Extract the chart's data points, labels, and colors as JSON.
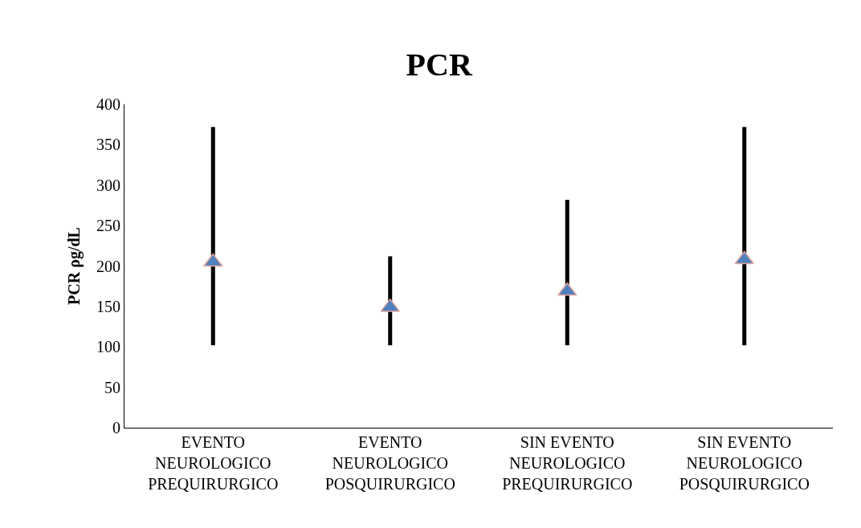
{
  "chart_data": {
    "type": "scatter",
    "title": "PCR",
    "ylabel": "PCR ρg/dL",
    "categories": [
      "EVENTO\nNEUROLOGICO\nPREQUIRURGICO",
      "EVENTO\nNEUROLOGICO\nPOSQUIRURGICO",
      "SIN EVENTO\nNEUROLOGICO\nPREQUIRURGICO",
      "SIN EVENTO\nNEUROLOGICO\nPOSQUIRURGICO"
    ],
    "values": [
      205,
      149,
      169,
      208
    ],
    "errors": [
      [
        102,
        372
      ],
      [
        102,
        212
      ],
      [
        102,
        282
      ],
      [
        102,
        372
      ]
    ],
    "color": "#4f81bd",
    "marker": "triangle",
    "ylim": [
      0,
      400
    ],
    "yticks": [
      0,
      50,
      100,
      150,
      200,
      250,
      300,
      350,
      400
    ]
  }
}
